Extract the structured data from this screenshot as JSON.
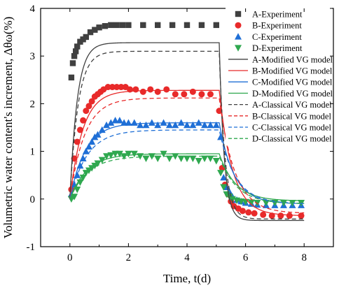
{
  "chart_data": {
    "type": "line",
    "xlabel": "Time, t(d)",
    "ylabel": "Volumetric water content's increment, Δθω(%)",
    "xlim": [
      -1,
      9
    ],
    "ylim": [
      -1,
      4
    ],
    "xticks": [
      "0",
      "2",
      "4",
      "6",
      "8"
    ],
    "yticks": [
      "-1",
      "0",
      "1",
      "2",
      "3",
      "4"
    ],
    "grid": false,
    "legend_position": "top-right",
    "series": [
      {
        "name": "A-Experiment",
        "kind": "scatter",
        "marker": "square",
        "color": "#404040",
        "x": [
          0.05,
          0.1,
          0.15,
          0.2,
          0.25,
          0.35,
          0.45,
          0.55,
          0.7,
          0.85,
          1.0,
          1.2,
          1.4,
          1.6,
          1.8,
          2.0,
          2.5,
          3.0,
          3.5,
          4.0,
          4.5,
          5.0
        ],
        "y": [
          2.55,
          2.85,
          3.0,
          3.1,
          3.2,
          3.3,
          3.35,
          3.4,
          3.5,
          3.55,
          3.6,
          3.63,
          3.65,
          3.65,
          3.65,
          3.65,
          3.65,
          3.65,
          3.65,
          3.65,
          3.65,
          3.65
        ]
      },
      {
        "name": "B-Experiment",
        "kind": "scatter",
        "marker": "circle",
        "color": "#e82a2a",
        "x": [
          0.05,
          0.15,
          0.25,
          0.35,
          0.45,
          0.55,
          0.65,
          0.75,
          0.85,
          0.95,
          1.05,
          1.15,
          1.3,
          1.45,
          1.6,
          1.75,
          1.9,
          2.05,
          2.25,
          2.5,
          2.75,
          3.0,
          3.3,
          3.6,
          3.9,
          4.2,
          4.5,
          4.8,
          5.1,
          5.2,
          5.3,
          5.4,
          5.5,
          5.6,
          5.75,
          5.9,
          6.1,
          6.3,
          6.6,
          6.9,
          7.2,
          7.5,
          7.9
        ],
        "y": [
          0.2,
          0.85,
          1.2,
          1.45,
          1.65,
          1.85,
          1.95,
          2.05,
          2.15,
          2.2,
          2.25,
          2.3,
          2.35,
          2.35,
          2.35,
          2.35,
          2.35,
          2.3,
          2.3,
          2.25,
          2.3,
          2.25,
          2.3,
          2.2,
          2.2,
          2.25,
          2.2,
          2.2,
          1.85,
          0.65,
          0.3,
          0.1,
          -0.05,
          -0.15,
          -0.2,
          -0.25,
          -0.28,
          -0.3,
          -0.33,
          -0.35,
          -0.35,
          -0.35,
          -0.35
        ]
      },
      {
        "name": "C-Experiment",
        "kind": "scatter",
        "marker": "triangle-up",
        "color": "#1f6fd6",
        "x": [
          0.05,
          0.15,
          0.25,
          0.35,
          0.45,
          0.55,
          0.65,
          0.75,
          0.85,
          0.95,
          1.1,
          1.25,
          1.4,
          1.55,
          1.7,
          1.85,
          2.0,
          2.2,
          2.4,
          2.6,
          2.8,
          3.0,
          3.2,
          3.4,
          3.6,
          3.8,
          4.0,
          4.2,
          4.4,
          4.6,
          4.8,
          5.0,
          5.15,
          5.25,
          5.35,
          5.45,
          5.55,
          5.7,
          5.85,
          6.0,
          6.2,
          6.4,
          6.7,
          7.0,
          7.3,
          7.6,
          7.9
        ],
        "y": [
          0.1,
          0.3,
          0.5,
          0.7,
          0.85,
          1.0,
          1.1,
          1.2,
          1.3,
          1.35,
          1.45,
          1.55,
          1.6,
          1.65,
          1.65,
          1.6,
          1.6,
          1.6,
          1.55,
          1.55,
          1.6,
          1.55,
          1.6,
          1.55,
          1.55,
          1.6,
          1.55,
          1.55,
          1.6,
          1.55,
          1.55,
          1.55,
          1.3,
          0.45,
          0.25,
          0.15,
          0.05,
          -0.02,
          -0.05,
          -0.08,
          -0.1,
          -0.12,
          -0.13,
          -0.13,
          -0.13,
          -0.13,
          -0.13
        ]
      },
      {
        "name": "D-Experiment",
        "kind": "scatter",
        "marker": "triangle-down",
        "color": "#2fa84f",
        "x": [
          0.05,
          0.15,
          0.25,
          0.35,
          0.45,
          0.55,
          0.65,
          0.75,
          0.85,
          0.95,
          1.1,
          1.25,
          1.4,
          1.55,
          1.7,
          1.85,
          2.0,
          2.2,
          2.4,
          2.6,
          2.8,
          3.0,
          3.2,
          3.4,
          3.6,
          3.8,
          4.0,
          4.2,
          4.4,
          4.6,
          4.8,
          5.0,
          5.15,
          5.25,
          5.35,
          5.45,
          5.55,
          5.7,
          5.85,
          6.0,
          6.2,
          6.4,
          6.7,
          7.0,
          7.3,
          7.6,
          7.9
        ],
        "y": [
          0.0,
          0.05,
          0.2,
          0.35,
          0.45,
          0.55,
          0.6,
          0.65,
          0.7,
          0.75,
          0.82,
          0.9,
          0.92,
          0.95,
          0.95,
          0.9,
          0.95,
          0.95,
          0.9,
          0.85,
          0.9,
          0.85,
          0.95,
          0.85,
          0.9,
          0.85,
          0.85,
          0.85,
          0.8,
          0.85,
          0.85,
          0.8,
          0.55,
          0.25,
          0.1,
          0.05,
          0.0,
          -0.03,
          -0.05,
          -0.06,
          -0.07,
          -0.08,
          -0.08,
          -0.08,
          -0.08,
          -0.08,
          -0.08
        ]
      },
      {
        "name": "A-Modified VG model",
        "kind": "line",
        "dash": "solid",
        "color": "#404040",
        "plateau": 3.28,
        "k": 4.0,
        "final": -0.45,
        "k2": 6.0
      },
      {
        "name": "B-Modified VG model",
        "kind": "line",
        "dash": "solid",
        "color": "#e82a2a",
        "plateau": 2.28,
        "k": 2.3,
        "final": -0.35,
        "k2": 2.2
      },
      {
        "name": "C-Modified VG model",
        "kind": "line",
        "dash": "solid",
        "color": "#1f6fd6",
        "plateau": 1.6,
        "k": 1.9,
        "final": -0.1,
        "k2": 2.0
      },
      {
        "name": "D-Modified VG model",
        "kind": "line",
        "dash": "solid",
        "color": "#2fa84f",
        "plateau": 0.95,
        "k": 1.7,
        "final": -0.04,
        "k2": 1.8
      },
      {
        "name": "A-Classical VG model",
        "kind": "line",
        "dash": "dashed",
        "color": "#404040",
        "plateau": 3.1,
        "k": 3.6,
        "final": -0.42,
        "k2": 5.0
      },
      {
        "name": "B-Classical VG model",
        "kind": "line",
        "dash": "dashed",
        "color": "#e82a2a",
        "plateau": 2.12,
        "k": 2.0,
        "final": -0.3,
        "k2": 1.9
      },
      {
        "name": "C-Classical VG model",
        "kind": "line",
        "dash": "dashed",
        "color": "#1f6fd6",
        "plateau": 1.45,
        "k": 1.7,
        "final": -0.1,
        "k2": 1.8
      },
      {
        "name": "D-Classical VG model",
        "kind": "line",
        "dash": "dashed",
        "color": "#2fa84f",
        "plateau": 0.9,
        "k": 1.6,
        "final": -0.1,
        "k2": 1.7
      }
    ],
    "switch_time": 5.1,
    "end_time": 8.0
  }
}
